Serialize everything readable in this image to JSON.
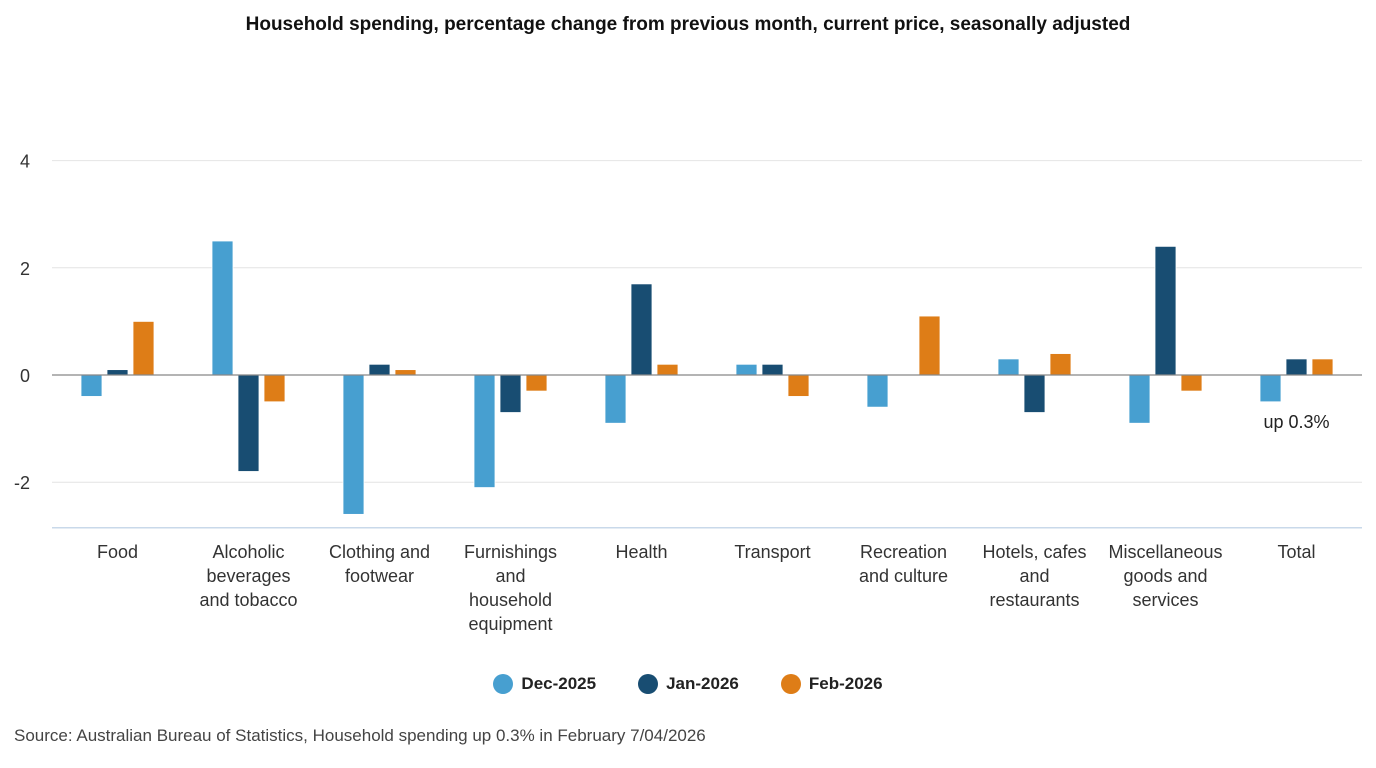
{
  "chart_data": {
    "type": "bar",
    "title": "Household spending, percentage change from previous month, current price, seasonally adjusted",
    "categories": [
      "Food",
      "Alcoholic beverages and tobacco",
      "Clothing and footwear",
      "Furnishings and household equipment",
      "Health",
      "Transport",
      "Recreation and culture",
      "Hotels, cafes and restaurants",
      "Miscellaneous goods and services",
      "Total"
    ],
    "category_lines": [
      [
        "Food"
      ],
      [
        "Alcoholic",
        "beverages",
        "and tobacco"
      ],
      [
        "Clothing and",
        "footwear"
      ],
      [
        "Furnishings",
        "and",
        "household",
        "equipment"
      ],
      [
        "Health"
      ],
      [
        "Transport"
      ],
      [
        "Recreation",
        "and culture"
      ],
      [
        "Hotels, cafes",
        "and",
        "restaurants"
      ],
      [
        "Miscellaneous",
        "goods and",
        "services"
      ],
      [
        "Total"
      ]
    ],
    "series": [
      {
        "name": "Dec-2025",
        "color": "#479fd0",
        "values": [
          -0.4,
          2.5,
          -2.6,
          -2.1,
          -0.9,
          0.2,
          -0.6,
          0.3,
          -0.9,
          -0.5
        ]
      },
      {
        "name": "Jan-2026",
        "color": "#184d72",
        "values": [
          0.1,
          -1.8,
          0.2,
          -0.7,
          1.7,
          0.2,
          0.0,
          -0.7,
          2.4,
          0.3
        ]
      },
      {
        "name": "Feb-2026",
        "color": "#de7d17",
        "values": [
          1.0,
          -0.5,
          0.1,
          -0.3,
          0.2,
          -0.4,
          1.1,
          0.4,
          -0.3,
          0.3
        ]
      }
    ],
    "yticks": [
      4,
      2,
      0,
      -2
    ],
    "ylim": [
      -2.85,
      4
    ],
    "xlabel": "",
    "ylabel": "",
    "grid": true,
    "legend": "bottom",
    "annotations": [
      {
        "category": "Total",
        "text": "up 0.3%"
      }
    ]
  },
  "source": "Source: Australian Bureau of Statistics, Household spending up 0.3% in February 7/04/2026"
}
